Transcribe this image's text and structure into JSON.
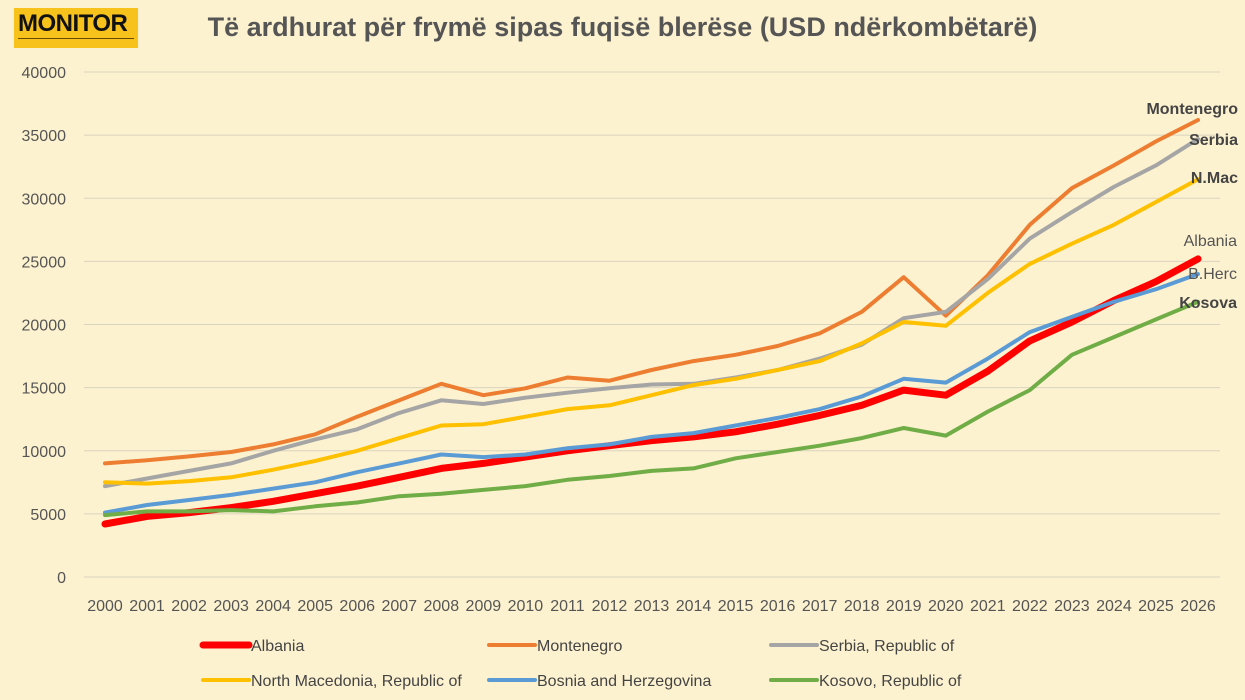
{
  "logo": {
    "text": "MONITOR"
  },
  "chart_data": {
    "type": "line",
    "title": "Të ardhurat për frymë sipas fuqisë blerëse (USD ndërkombëtarë)",
    "xlabel": "",
    "ylabel": "",
    "ylim": [
      0,
      40000
    ],
    "yticks": [
      0,
      5000,
      10000,
      15000,
      20000,
      25000,
      30000,
      35000,
      40000
    ],
    "grid": true,
    "legend_position": "bottom",
    "x": [
      "2000",
      "2001",
      "2002",
      "2003",
      "2004",
      "2005",
      "2006",
      "2007",
      "2008",
      "2009",
      "2010",
      "2011",
      "2012",
      "2013",
      "2014",
      "2015",
      "2016",
      "2017",
      "2018",
      "2019",
      "2020",
      "2021",
      "2022",
      "2023",
      "2024",
      "2025",
      "2026"
    ],
    "series": [
      {
        "name": "Montenegro",
        "color": "#ed7d31",
        "width": 4,
        "end_label": "Montenegro",
        "end_label_bold": true,
        "end_label_color": "#444",
        "values": [
          9000,
          9250,
          9550,
          9900,
          10500,
          11300,
          12700,
          14000,
          15300,
          14400,
          14950,
          15800,
          15550,
          16400,
          17100,
          17600,
          18300,
          19300,
          21000,
          23750,
          20700,
          23900,
          27900,
          30800,
          32600,
          34500,
          36200
        ]
      },
      {
        "name": "Serbia, Republic of",
        "color": "#a5a5a5",
        "width": 4,
        "end_label": "Serbia",
        "end_label_bold": true,
        "end_label_color": "#444",
        "values": [
          7200,
          7800,
          8400,
          9000,
          10000,
          10900,
          11700,
          13000,
          14000,
          13700,
          14200,
          14600,
          14950,
          15250,
          15300,
          15800,
          16400,
          17300,
          18400,
          20500,
          21000,
          23600,
          26800,
          28900,
          30900,
          32600,
          34700
        ]
      },
      {
        "name": "North Macedonia, Republic of",
        "color": "#ffc000",
        "width": 4,
        "end_label": "N.Mac",
        "end_label_bold": true,
        "end_label_color": "#444",
        "values": [
          7500,
          7400,
          7600,
          7900,
          8500,
          9200,
          10000,
          11000,
          12000,
          12100,
          12700,
          13300,
          13600,
          14400,
          15200,
          15700,
          16400,
          17100,
          18500,
          20200,
          19900,
          22500,
          24800,
          26400,
          27900,
          29700,
          31500
        ]
      },
      {
        "name": "Albania",
        "color": "#ff0000",
        "width": 7,
        "end_label": "Albania",
        "end_label_bold": false,
        "end_label_color": "#555",
        "values": [
          4200,
          4800,
          5100,
          5500,
          6000,
          6600,
          7200,
          7900,
          8600,
          9000,
          9500,
          10000,
          10400,
          10800,
          11100,
          11500,
          12100,
          12800,
          13600,
          14800,
          14400,
          16300,
          18700,
          20200,
          21900,
          23400,
          25200
        ]
      },
      {
        "name": "Bosnia and Herzegovina",
        "color": "#5b9bd5",
        "width": 4,
        "end_label": "B.Herc",
        "end_label_bold": false,
        "end_label_color": "#555",
        "values": [
          5100,
          5700,
          6100,
          6500,
          7000,
          7500,
          8300,
          9000,
          9700,
          9500,
          9700,
          10200,
          10500,
          11100,
          11400,
          12000,
          12600,
          13300,
          14300,
          15700,
          15400,
          17300,
          19400,
          20600,
          21800,
          22800,
          24000
        ]
      },
      {
        "name": "Kosovo, Republic of",
        "color": "#70ad47",
        "width": 4,
        "end_label": "Kosova",
        "end_label_bold": true,
        "end_label_color": "#444",
        "values": [
          4900,
          5200,
          5200,
          5300,
          5200,
          5600,
          5900,
          6400,
          6600,
          6900,
          7200,
          7700,
          8000,
          8400,
          8600,
          9400,
          9900,
          10400,
          11000,
          11800,
          11200,
          13100,
          14800,
          17600,
          19000,
          20400,
          21800
        ]
      }
    ],
    "legend_order": [
      "Albania",
      "Montenegro",
      "Serbia, Republic of",
      "North Macedonia, Republic of",
      "Bosnia and Herzegovina",
      "Kosovo, Republic of"
    ]
  }
}
